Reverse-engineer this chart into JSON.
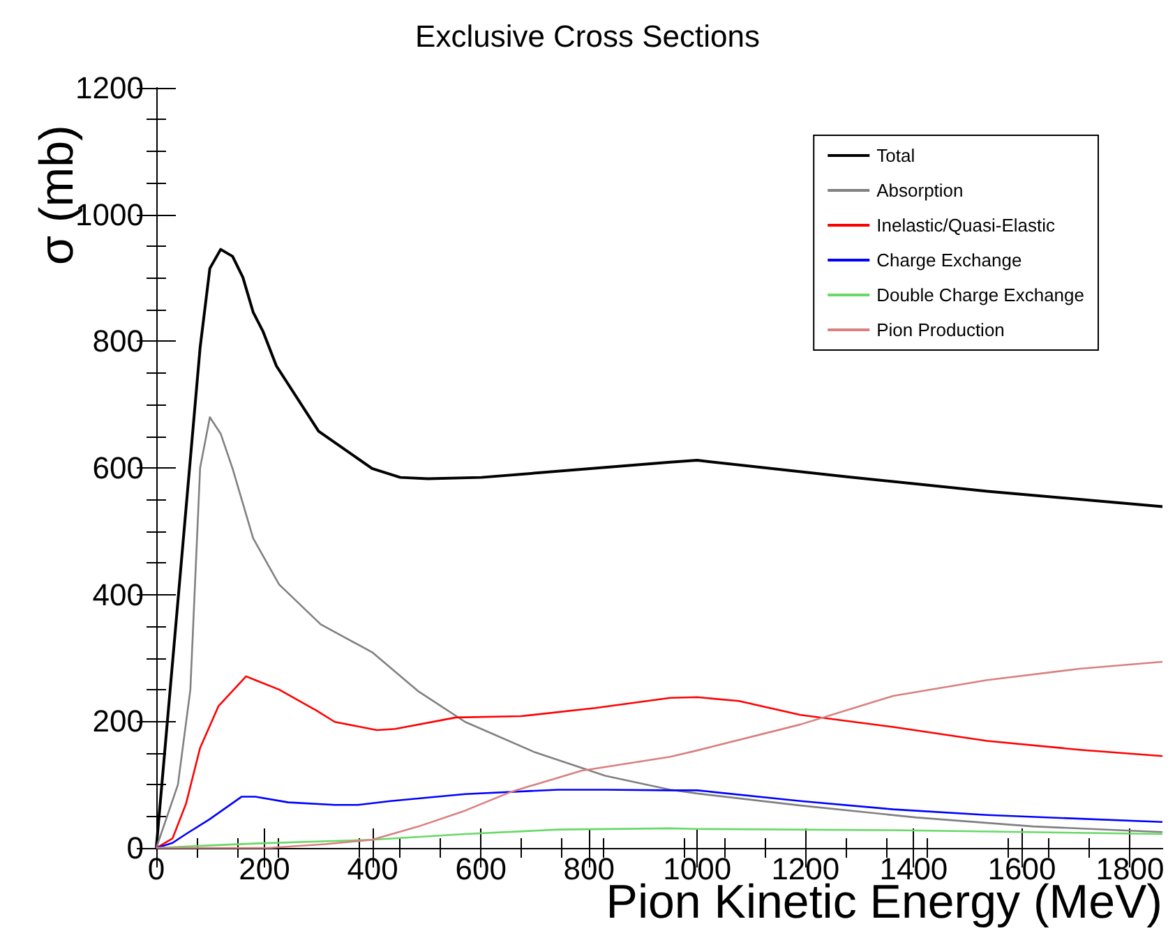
{
  "chart_data": {
    "type": "line",
    "title": "Exclusive Cross Sections",
    "xlabel": "Pion Kinetic Energy (MeV)",
    "ylabel": "σ (mb)",
    "xlim": [
      0,
      1860
    ],
    "ylim": [
      0,
      1200
    ],
    "xticks": [
      0,
      200,
      400,
      600,
      800,
      1000,
      1200,
      1400,
      1600,
      1800
    ],
    "yticks": [
      0,
      200,
      400,
      600,
      800,
      1000,
      1200
    ],
    "grid": false,
    "legend": "top right",
    "marker": "none",
    "line_style": "solid",
    "series": [
      {
        "name": "Total",
        "color": "#000000",
        "x": [
          0,
          81,
          99,
          119,
          141,
          160,
          179,
          197,
          222,
          300,
          399,
          451,
          502,
          601,
          950,
          1000,
          1277,
          1536,
          1860
        ],
        "values": [
          0,
          790,
          915,
          945,
          934,
          901,
          846,
          816,
          761,
          658,
          599,
          585,
          583,
          585,
          609,
          612,
          586,
          563,
          539
        ]
      },
      {
        "name": "Absorption",
        "color": "#808080",
        "x": [
          0,
          40,
          63,
          81,
          99,
          119,
          141,
          179,
          227,
          304,
          399,
          485,
          571,
          700,
          830,
          950,
          1000,
          1191,
          1406,
          1621,
          1860
        ],
        "values": [
          0,
          100,
          250,
          600,
          680,
          654,
          599,
          489,
          416,
          353,
          309,
          247,
          199,
          151,
          114,
          92,
          86,
          67,
          48,
          34,
          25
        ]
      },
      {
        "name": "Inelastic/Quasi-Elastic",
        "color": "#ff0000",
        "x": [
          0,
          30,
          55,
          81,
          115,
          166,
          183,
          227,
          296,
          330,
          408,
          442,
          554,
          674,
          812,
          950,
          1000,
          1077,
          1191,
          1362,
          1536,
          1707,
          1860
        ],
        "values": [
          0,
          15,
          70,
          158,
          224,
          271,
          265,
          250,
          217,
          199,
          186,
          188,
          206,
          208,
          221,
          237,
          238,
          232,
          210,
          191,
          169,
          155,
          145
        ]
      },
      {
        "name": "Charge Exchange",
        "color": "#0000ff",
        "x": [
          0,
          30,
          55,
          98,
          158,
          183,
          244,
          330,
          373,
          433,
          571,
          743,
          830,
          950,
          1000,
          1191,
          1362,
          1536,
          1860
        ],
        "values": [
          0,
          8,
          22,
          45,
          81,
          81,
          72,
          68,
          68,
          74,
          85,
          92,
          92,
          91,
          91,
          74,
          61,
          52,
          41
        ]
      },
      {
        "name": "Double Charge Exchange",
        "color": "#66d966",
        "x": [
          0,
          98,
          183,
          399,
          571,
          743,
          950,
          1000,
          1362,
          1860
        ],
        "values": [
          0,
          4,
          7,
          13,
          22,
          29,
          31,
          30,
          28,
          22
        ]
      },
      {
        "name": "Pion Production",
        "color": "#d98080",
        "x": [
          0,
          207,
          313,
          399,
          485,
          571,
          657,
          786,
          950,
          1000,
          1191,
          1362,
          1536,
          1707,
          1860
        ],
        "values": [
          0,
          0,
          6,
          13,
          34,
          59,
          89,
          122,
          144,
          154,
          195,
          240,
          265,
          283,
          294
        ]
      }
    ]
  }
}
